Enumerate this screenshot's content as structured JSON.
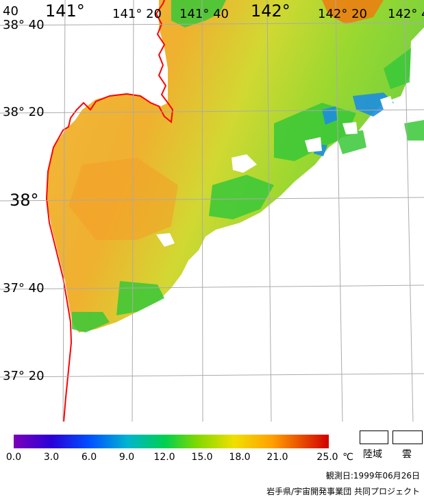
{
  "map": {
    "longitude_labels": [
      {
        "text": "141°",
        "size": "big"
      },
      {
        "text": "141° 20",
        "size": "small"
      },
      {
        "text": "141° 40",
        "size": "small"
      },
      {
        "text": "142°",
        "size": "big"
      },
      {
        "text": "142° 20",
        "size": "small"
      },
      {
        "text": "142° 4",
        "size": "small"
      }
    ],
    "latitude_labels": [
      {
        "text": "38° 40",
        "size": "small"
      },
      {
        "text": "38° 20",
        "size": "small"
      },
      {
        "text": "38°",
        "size": "big"
      },
      {
        "text": "37° 40",
        "size": "small"
      },
      {
        "text": "37° 20",
        "size": "small"
      }
    ],
    "corner_fragment": "40",
    "coastline_color": "#ff0000",
    "grid_color": "#aaaaaa"
  },
  "colorbar": {
    "ticks": [
      "0.0",
      "3.0",
      "6.0",
      "9.0",
      "12.0",
      "15.0",
      "18.0",
      "21.0",
      "25.0"
    ],
    "unit": "℃",
    "colors": [
      "#7b00b8",
      "#2a00d8",
      "#0050ff",
      "#00b4d0",
      "#00d050",
      "#40d000",
      "#c8e000",
      "#ffd000",
      "#ff8000",
      "#e00000"
    ]
  },
  "legend": {
    "land_label": "陸域",
    "cloud_label": "雲"
  },
  "footer": {
    "observation_date": "観測日:1999年06月26日",
    "credit": "岩手県/宇宙開発事業団 共同プロジェクト"
  }
}
